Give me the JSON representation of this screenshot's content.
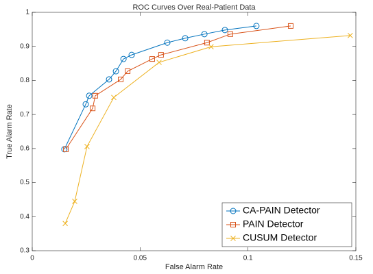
{
  "chart_data": {
    "type": "line",
    "title": "ROC Curves Over Real-Patient Data",
    "x_label": "False Alarm Rate",
    "y_label": "True Alarm Rate",
    "xlim": [
      0,
      0.15
    ],
    "xticks": [
      0,
      0.05,
      0.1,
      0.15
    ],
    "ylim": [
      0.3,
      1
    ],
    "yticks": [
      0.3,
      0.4,
      0.5,
      0.6,
      0.7,
      0.8,
      0.9,
      1
    ],
    "legend": "bottom-right",
    "series": [
      {
        "name": "CA-PAIN Detector",
        "color": "#0072bd",
        "marker": "circle",
        "x": [
          0.0149,
          0.0248,
          0.0264,
          0.0356,
          0.0388,
          0.0423,
          0.0461,
          0.0626,
          0.0709,
          0.0798,
          0.0893,
          0.1039
        ],
        "values": [
          0.598,
          0.73,
          0.755,
          0.803,
          0.827,
          0.863,
          0.875,
          0.911,
          0.924,
          0.936,
          0.948,
          0.96
        ]
      },
      {
        "name": "PAIN Detector",
        "color": "#d95319",
        "marker": "square",
        "x": [
          0.0156,
          0.028,
          0.0292,
          0.041,
          0.0442,
          0.0556,
          0.0597,
          0.081,
          0.0918,
          0.1198
        ],
        "values": [
          0.598,
          0.718,
          0.755,
          0.803,
          0.827,
          0.863,
          0.875,
          0.911,
          0.936,
          0.96
        ]
      },
      {
        "name": "CUSUM Detector",
        "color": "#edb120",
        "marker": "x",
        "x": [
          0.0153,
          0.0197,
          0.0254,
          0.0378,
          0.0588,
          0.0829,
          0.1474
        ],
        "values": [
          0.38,
          0.445,
          0.606,
          0.75,
          0.853,
          0.899,
          0.932
        ]
      }
    ]
  }
}
